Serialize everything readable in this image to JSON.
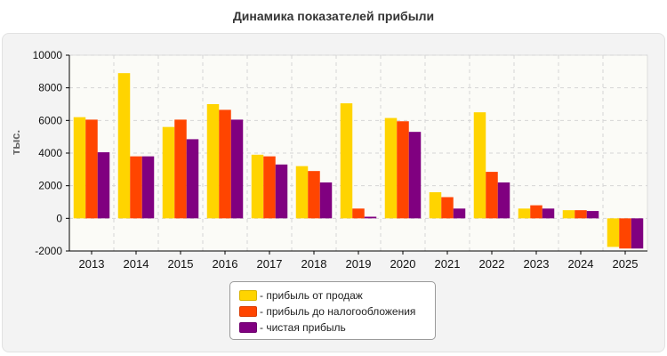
{
  "colors": {
    "sales_profit": "#FFD400",
    "pretax_profit": "#FF4500",
    "net_profit": "#800080"
  },
  "chart_data": {
    "type": "bar",
    "title": "Динамика показателей прибыли",
    "xlabel": "",
    "ylabel": "тыс.",
    "ylim": [
      -2000,
      10000
    ],
    "yticks": [
      -2000,
      0,
      2000,
      4000,
      6000,
      8000,
      10000
    ],
    "grid": true,
    "legend_position": "bottom",
    "categories": [
      "2013",
      "2014",
      "2015",
      "2016",
      "2017",
      "2018",
      "2019",
      "2020",
      "2021",
      "2022",
      "2023",
      "2024",
      "2025"
    ],
    "series": [
      {
        "name": "- прибыль от продаж",
        "color": "#FFD400",
        "values": [
          6200,
          8900,
          5600,
          7000,
          3900,
          3200,
          7050,
          6150,
          1600,
          6500,
          600,
          500,
          -1750
        ]
      },
      {
        "name": "- прибыль до налогообложения",
        "color": "#FF4500",
        "values": [
          6050,
          3800,
          6050,
          6650,
          3800,
          2900,
          600,
          5950,
          1300,
          2850,
          800,
          500,
          -1850
        ]
      },
      {
        "name": "- чистая прибыль",
        "color": "#800080",
        "values": [
          4050,
          3800,
          4850,
          6050,
          3300,
          2200,
          100,
          5300,
          600,
          2200,
          600,
          450,
          -1850
        ]
      }
    ]
  }
}
